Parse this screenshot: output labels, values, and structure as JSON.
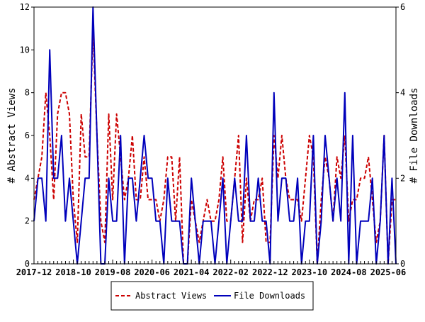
{
  "chart_data": {
    "type": "line",
    "title": "",
    "xlabel": "",
    "ylabel": "# Abstract Views",
    "y2label": "# File Downloads",
    "ylim": [
      0,
      12
    ],
    "y2lim": [
      0,
      6
    ],
    "yticks": [
      0,
      2,
      4,
      6,
      8,
      10,
      12
    ],
    "y2ticks": [
      0,
      2,
      4,
      6
    ],
    "xtick_labels": [
      "2017-12",
      "2018-10",
      "2019-08",
      "2020-06",
      "2021-04",
      "2022-02",
      "2022-12",
      "2023-10",
      "2024-08",
      "2025-06"
    ],
    "x": [
      "2017-12",
      "2018-01",
      "2018-02",
      "2018-03",
      "2018-04",
      "2018-05",
      "2018-06",
      "2018-07",
      "2018-08",
      "2018-09",
      "2018-10",
      "2018-11",
      "2018-12",
      "2019-01",
      "2019-02",
      "2019-03",
      "2019-04",
      "2019-05",
      "2019-06",
      "2019-07",
      "2019-08",
      "2019-09",
      "2019-10",
      "2019-11",
      "2019-12",
      "2020-01",
      "2020-02",
      "2020-03",
      "2020-04",
      "2020-05",
      "2020-06",
      "2020-07",
      "2020-08",
      "2020-09",
      "2020-10",
      "2020-11",
      "2020-12",
      "2021-01",
      "2021-02",
      "2021-03",
      "2021-04",
      "2021-05",
      "2021-06",
      "2021-07",
      "2021-08",
      "2021-09",
      "2021-10",
      "2021-11",
      "2021-12",
      "2022-01",
      "2022-02",
      "2022-03",
      "2022-04",
      "2022-05",
      "2022-06",
      "2022-07",
      "2022-08",
      "2022-09",
      "2022-10",
      "2022-11",
      "2022-12",
      "2023-01",
      "2023-02",
      "2023-03",
      "2023-04",
      "2023-05",
      "2023-06",
      "2023-07",
      "2023-08",
      "2023-09",
      "2023-10",
      "2023-11",
      "2023-12",
      "2024-01",
      "2024-02",
      "2024-03",
      "2024-04",
      "2024-05",
      "2024-06",
      "2024-07",
      "2024-08",
      "2024-09",
      "2024-10",
      "2024-11",
      "2024-12",
      "2025-01",
      "2025-02",
      "2025-03",
      "2025-04",
      "2025-05",
      "2025-06",
      "2025-07",
      "2025-08"
    ],
    "series": [
      {
        "name": "Abstract Views",
        "axis": "left",
        "color": "#cc0000",
        "style": "dashed",
        "values": [
          3,
          4,
          5,
          8,
          6,
          3,
          7,
          8,
          8,
          7,
          3,
          1,
          7,
          5,
          5,
          11,
          6,
          2,
          1,
          7,
          3,
          7,
          5,
          3,
          4,
          6,
          3,
          3,
          5,
          3,
          3,
          3,
          2,
          3,
          5,
          5,
          2,
          5,
          0,
          0,
          3,
          2,
          1,
          2,
          3,
          2,
          2,
          3,
          5,
          2,
          2,
          4,
          6,
          1,
          4,
          2,
          3,
          3,
          4,
          1,
          1,
          6,
          4,
          6,
          4,
          3,
          3,
          3,
          2,
          4,
          6,
          5,
          0,
          3,
          5,
          4,
          2,
          5,
          4,
          6,
          2,
          3,
          3,
          4,
          4,
          5,
          3,
          1,
          2,
          6,
          0,
          3,
          3
        ]
      },
      {
        "name": "File Downloads",
        "axis": "right",
        "color": "#0000bb",
        "style": "solid",
        "values": [
          1,
          2,
          2,
          1,
          5,
          2,
          2,
          3,
          1,
          2,
          1,
          0,
          1,
          2,
          2,
          6,
          3,
          0,
          0,
          2,
          1,
          1,
          3,
          0,
          2,
          2,
          1,
          2,
          3,
          2,
          2,
          1,
          1,
          0,
          2,
          1,
          1,
          1,
          0,
          0,
          2,
          1,
          0,
          1,
          1,
          1,
          0,
          1,
          2,
          0,
          1,
          2,
          1,
          1,
          3,
          1,
          1,
          2,
          1,
          1,
          0,
          4,
          1,
          2,
          2,
          1,
          1,
          2,
          0,
          1,
          1,
          3,
          0,
          1,
          3,
          2,
          1,
          2,
          1,
          4,
          0,
          3,
          0,
          1,
          1,
          1,
          2,
          0,
          1,
          3,
          0,
          2,
          0
        ]
      }
    ],
    "legend": {
      "position": "bottom",
      "entries": [
        "Abstract Views",
        "File Downloads"
      ]
    },
    "grid": false
  }
}
